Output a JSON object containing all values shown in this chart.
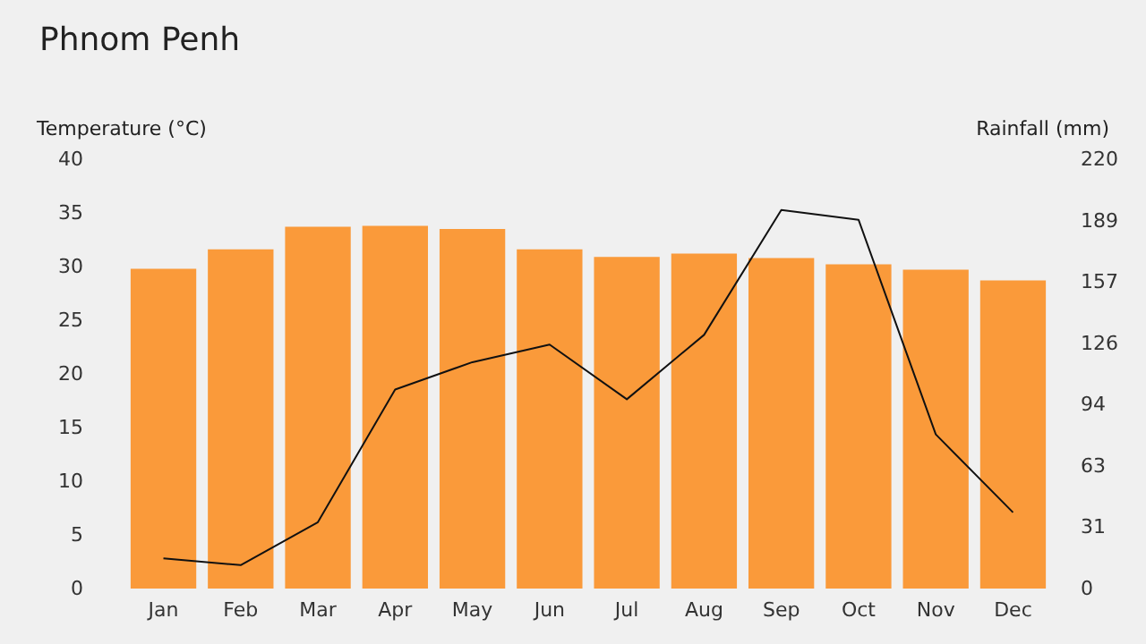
{
  "chart_data": {
    "type": "bar",
    "title": "Phnom Penh",
    "ylabel": "Temperature (°C)",
    "y2label": "Rainfall (mm)",
    "categories": [
      "Jan",
      "Feb",
      "Mar",
      "Apr",
      "May",
      "Jun",
      "Jul",
      "Aug",
      "Sep",
      "Oct",
      "Nov",
      "Dec"
    ],
    "series": [
      {
        "color": "#fa9a3a",
        "values": [
          29.8,
          31.6,
          33.7,
          33.8,
          33.5,
          31.6,
          30.9,
          31.2,
          30.8,
          30.2,
          29.7,
          28.7
        ]
      },
      {
        "type": "line",
        "axis": "y2",
        "color": "#111111",
        "values": [
          15.5,
          12,
          34,
          102,
          116,
          125,
          97,
          130,
          194,
          189,
          79,
          39
        ]
      }
    ],
    "ylim": [
      0,
      40
    ],
    "yticks": [
      0,
      5,
      10,
      15,
      20,
      25,
      30,
      35,
      40
    ],
    "y2lim": [
      0,
      220
    ],
    "y2ticks": [
      0,
      {
        "value": 31.43,
        "label": "31"
      },
      {
        "value": 62.86,
        "label": "63"
      },
      {
        "value": 94.29,
        "label": "94"
      },
      {
        "value": 125.71,
        "label": "126"
      },
      {
        "value": 157.14,
        "label": "157"
      },
      {
        "value": 188.57,
        "label": "189"
      },
      220
    ],
    "grid": false
  }
}
